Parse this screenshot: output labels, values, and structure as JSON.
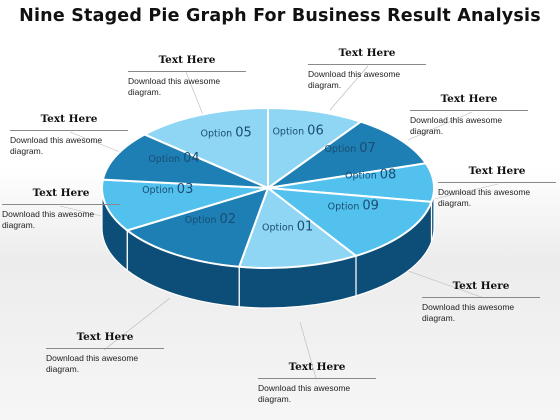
{
  "title": "Nine Staged Pie Graph For Business Result Analysis",
  "options": [
    {
      "word": "Option",
      "num": "01"
    },
    {
      "word": "Option",
      "num": "02"
    },
    {
      "word": "Option",
      "num": "03"
    },
    {
      "word": "Option",
      "num": "04"
    },
    {
      "word": "Option",
      "num": "05"
    },
    {
      "word": "Option",
      "num": "06"
    },
    {
      "word": "Option",
      "num": "07"
    },
    {
      "word": "Option",
      "num": "08"
    },
    {
      "word": "Option",
      "num": "09"
    }
  ],
  "callouts": [
    {
      "heading": "Text Here",
      "line1": "Download this awesome",
      "line2": "diagram."
    },
    {
      "heading": "Text Here",
      "line1": "Download this awesome",
      "line2": "diagram."
    },
    {
      "heading": "Text Here",
      "line1": "Download this awesome",
      "line2": "diagram."
    },
    {
      "heading": "Text Here",
      "line1": "Download this awesome",
      "line2": "diagram."
    },
    {
      "heading": "Text Here",
      "line1": "Download this awesome",
      "line2": "diagram."
    },
    {
      "heading": "Text Here",
      "line1": "Download this awesome",
      "line2": "diagram."
    },
    {
      "heading": "Text Here",
      "line1": "Download this awesome",
      "line2": "diagram."
    },
    {
      "heading": "Text Here",
      "line1": "Download this awesome",
      "line2": "diagram."
    },
    {
      "heading": "Text Here",
      "line1": "Download this awesome",
      "line2": "diagram."
    }
  ],
  "colors": {
    "light_blue": "#8fd6f5",
    "mid_blue": "#53c1ee",
    "dark_blue": "#1d7fb3",
    "navy_side": "#0d4e78",
    "label_text": "#1a4d73"
  }
}
